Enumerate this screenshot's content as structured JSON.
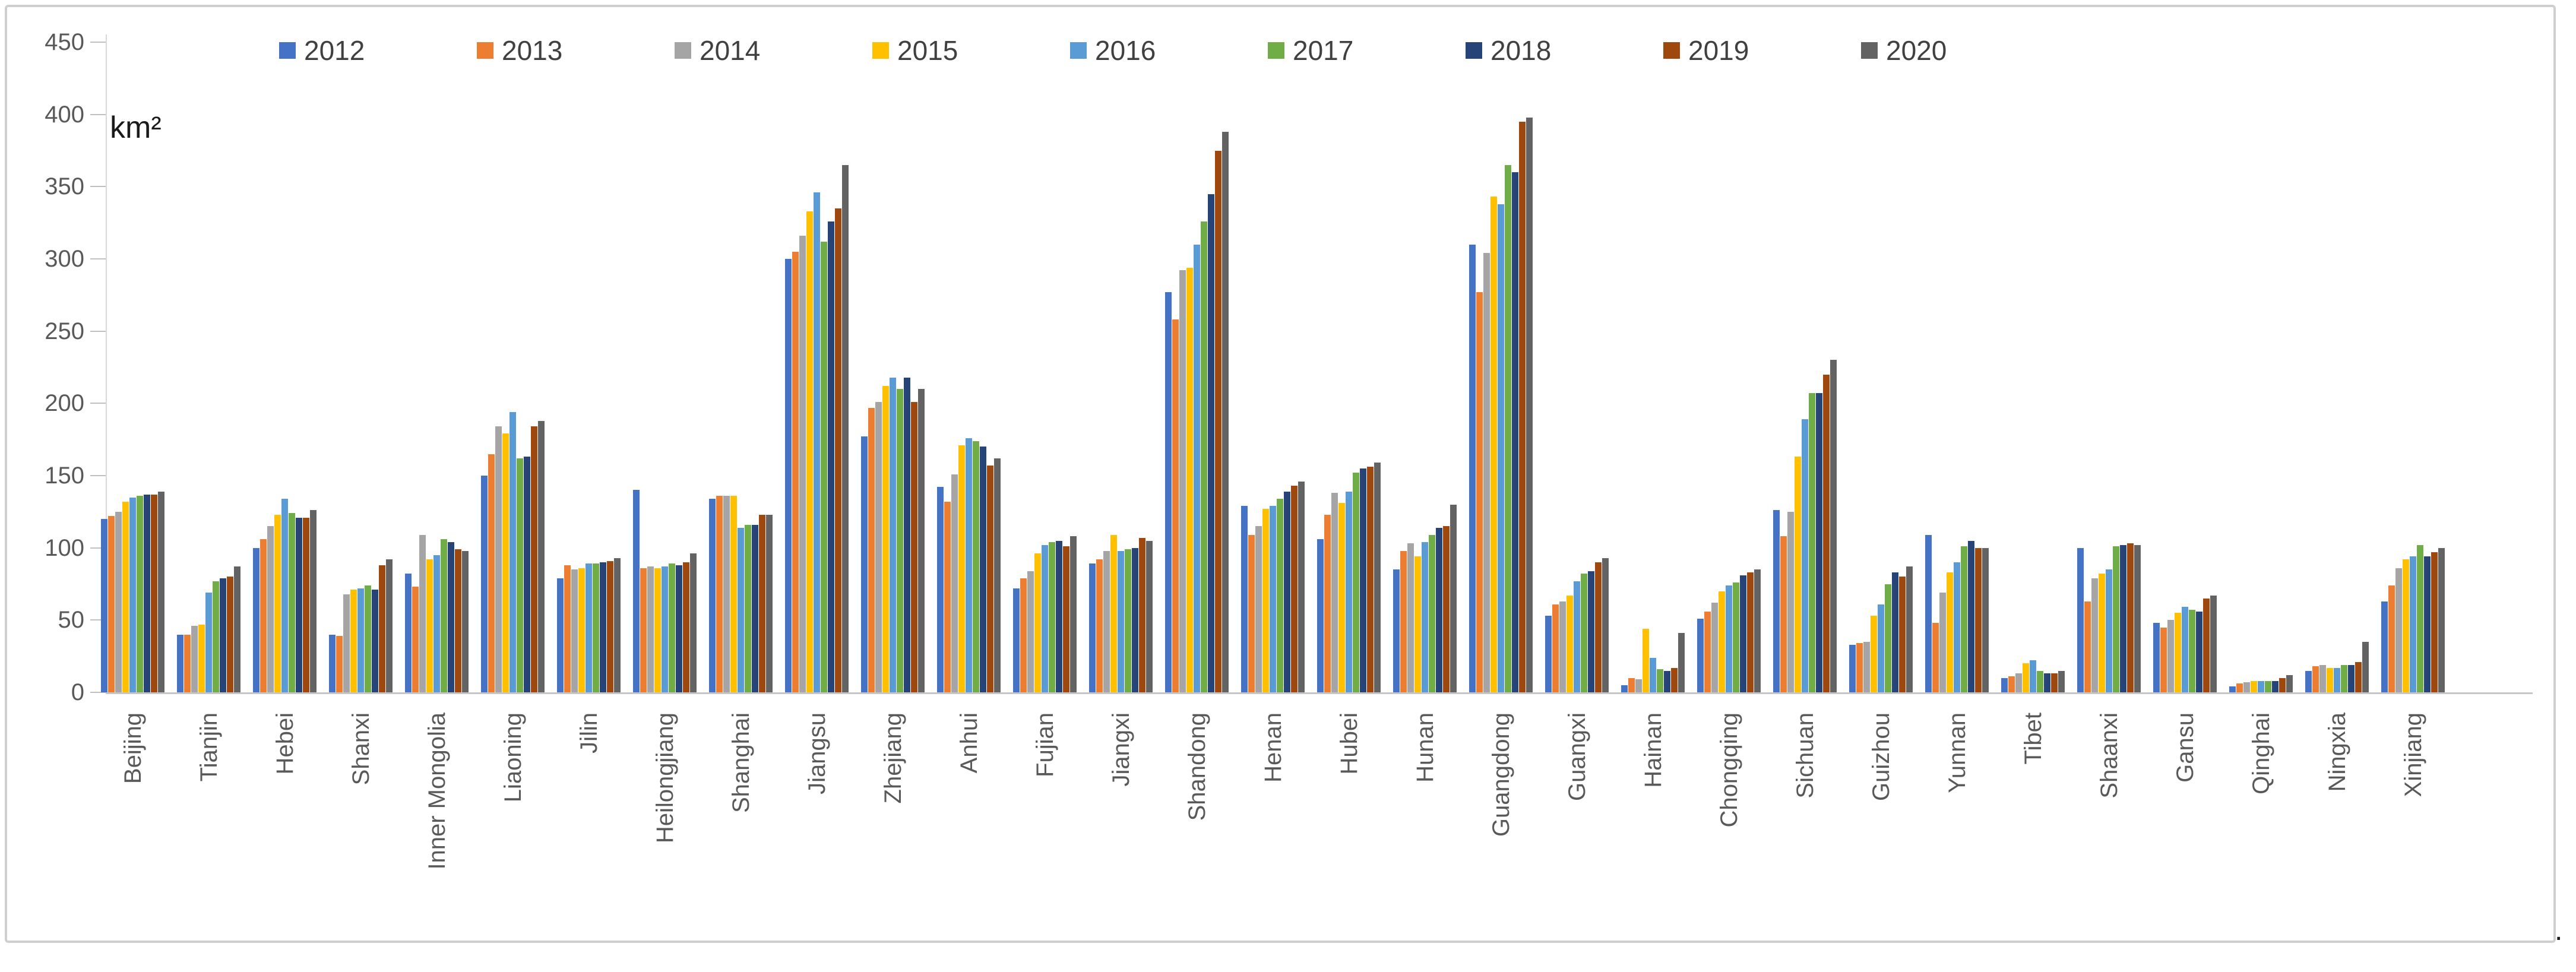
{
  "figure": {
    "unit_label": "km²",
    "corner_period": "."
  },
  "chart_data": {
    "type": "bar",
    "title": "",
    "ylabel": "km²",
    "xlabel": "",
    "ylim": [
      0,
      450
    ],
    "yticks": [
      0,
      50,
      100,
      150,
      200,
      250,
      300,
      350,
      400,
      450
    ],
    "grid": false,
    "legend_position": "top",
    "axis_color": "#d9d9d9",
    "label_color": "#595959",
    "categories": [
      "Beijing",
      "Tianjin",
      "Hebei",
      "Shanxi",
      "Inner Mongolia",
      "Liaoning",
      "Jilin",
      "Heilongjiang",
      "Shanghai",
      "Jiangsu",
      "Zhejiang",
      "Anhui",
      "Fujian",
      "Jiangxi",
      "Shandong",
      "Henan",
      "Hubei",
      "Hunan",
      "Guangdong",
      "Guangxi",
      "Hainan",
      "Chongqing",
      "Sichuan",
      "Guizhou",
      "Yunnan",
      "Tibet",
      "Shaanxi",
      "Gansu",
      "Qinghai",
      "Ningxia",
      "Xinjiang"
    ],
    "series": [
      {
        "name": "2012",
        "color": "#4472C4",
        "values": [
          120,
          40,
          100,
          40,
          82,
          150,
          79,
          140,
          134,
          300,
          177,
          142,
          72,
          89,
          277,
          129,
          106,
          85,
          310,
          53,
          5,
          51,
          126,
          33,
          109,
          10,
          100,
          48,
          4,
          15,
          63
        ]
      },
      {
        "name": "2013",
        "color": "#ED7D31",
        "values": [
          122,
          40,
          106,
          39,
          73,
          165,
          88,
          86,
          136,
          305,
          197,
          132,
          79,
          92,
          258,
          109,
          123,
          98,
          277,
          61,
          10,
          56,
          108,
          34,
          48,
          11,
          63,
          45,
          6,
          18,
          74
        ]
      },
      {
        "name": "2014",
        "color": "#A5A5A5",
        "values": [
          125,
          46,
          115,
          68,
          109,
          184,
          85,
          87,
          136,
          316,
          201,
          151,
          84,
          98,
          292,
          115,
          138,
          103,
          304,
          63,
          9,
          62,
          125,
          35,
          69,
          13,
          79,
          50,
          7,
          19,
          86
        ]
      },
      {
        "name": "2015",
        "color": "#FFC000",
        "values": [
          132,
          47,
          123,
          71,
          92,
          179,
          86,
          86,
          136,
          333,
          212,
          171,
          96,
          109,
          294,
          127,
          131,
          94,
          343,
          67,
          44,
          70,
          163,
          53,
          83,
          20,
          82,
          55,
          8,
          17,
          92
        ]
      },
      {
        "name": "2016",
        "color": "#5B9BD5",
        "values": [
          135,
          69,
          134,
          72,
          95,
          194,
          89,
          87,
          114,
          346,
          218,
          176,
          102,
          98,
          310,
          129,
          139,
          104,
          338,
          77,
          24,
          74,
          189,
          61,
          90,
          22,
          85,
          59,
          8,
          17,
          94
        ]
      },
      {
        "name": "2017",
        "color": "#70AD47",
        "values": [
          136,
          77,
          124,
          74,
          106,
          162,
          89,
          89,
          116,
          312,
          210,
          174,
          104,
          99,
          326,
          134,
          152,
          109,
          365,
          82,
          16,
          76,
          207,
          75,
          101,
          15,
          101,
          57,
          8,
          19,
          102
        ]
      },
      {
        "name": "2018",
        "color": "#264478",
        "values": [
          137,
          79,
          121,
          71,
          104,
          163,
          90,
          88,
          116,
          326,
          218,
          170,
          105,
          100,
          345,
          139,
          155,
          114,
          360,
          84,
          15,
          81,
          207,
          83,
          105,
          13,
          102,
          56,
          8,
          19,
          94
        ]
      },
      {
        "name": "2019",
        "color": "#9E480E",
        "values": [
          137,
          80,
          121,
          88,
          99,
          184,
          91,
          90,
          123,
          335,
          201,
          157,
          101,
          107,
          375,
          143,
          156,
          115,
          395,
          90,
          17,
          83,
          220,
          80,
          100,
          13,
          103,
          65,
          10,
          21,
          97
        ]
      },
      {
        "name": "2020",
        "color": "#636363",
        "values": [
          139,
          87,
          126,
          92,
          98,
          188,
          93,
          96,
          123,
          365,
          210,
          162,
          108,
          105,
          388,
          146,
          159,
          130,
          398,
          93,
          41,
          85,
          230,
          87,
          100,
          15,
          102,
          67,
          12,
          35,
          100
        ]
      }
    ]
  }
}
